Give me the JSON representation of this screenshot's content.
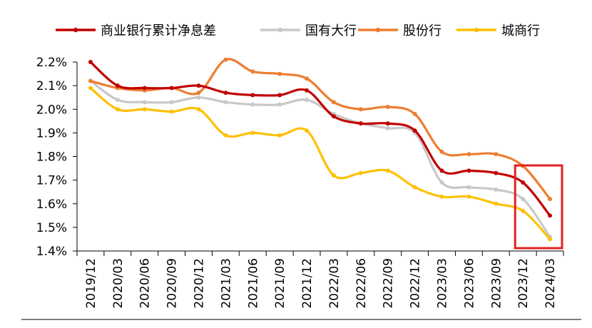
{
  "chart_data": {
    "type": "line",
    "title": "",
    "xlabel": "",
    "ylabel": "",
    "x": [
      "2019/12",
      "2020/03",
      "2020/06",
      "2020/09",
      "2020/12",
      "2021/03",
      "2021/06",
      "2021/09",
      "2021/12",
      "2022/03",
      "2022/06",
      "2022/09",
      "2022/12",
      "2023/03",
      "2023/06",
      "2023/09",
      "2023/12",
      "2024/03"
    ],
    "ylim": [
      1.4,
      2.2
    ],
    "yticks": [
      "1.4%",
      "1.5%",
      "1.6%",
      "1.7%",
      "1.8%",
      "1.9%",
      "2.0%",
      "2.1%",
      "2.2%"
    ],
    "grid": false,
    "legend_position": "top",
    "series": [
      {
        "name": "商业银行累计净息差",
        "color": "#c00000",
        "values": [
          2.2,
          2.1,
          2.09,
          2.09,
          2.1,
          2.07,
          2.06,
          2.06,
          2.08,
          1.97,
          1.94,
          1.94,
          1.91,
          1.74,
          1.74,
          1.73,
          1.69,
          1.55
        ]
      },
      {
        "name": "国有大行",
        "color": "#c8c8c8",
        "values": [
          2.12,
          2.04,
          2.03,
          2.03,
          2.05,
          2.03,
          2.02,
          2.02,
          2.04,
          1.98,
          1.94,
          1.92,
          1.9,
          1.69,
          1.67,
          1.66,
          1.62,
          1.46
        ]
      },
      {
        "name": "股份行",
        "color": "#ed7d31",
        "values": [
          2.12,
          2.09,
          2.08,
          2.09,
          2.07,
          2.21,
          2.16,
          2.15,
          2.13,
          2.03,
          2.0,
          2.01,
          1.98,
          1.82,
          1.81,
          1.81,
          1.76,
          1.62
        ]
      },
      {
        "name": "城商行",
        "color": "#ffc000",
        "values": [
          2.09,
          2.0,
          2.0,
          1.99,
          2.0,
          1.89,
          1.9,
          1.89,
          1.91,
          1.72,
          1.73,
          1.74,
          1.67,
          1.63,
          1.63,
          1.6,
          1.57,
          1.45
        ]
      }
    ],
    "annotations": [
      {
        "type": "highlight-box",
        "color": "#e32020",
        "covers": [
          "2023/12",
          "2024/03"
        ]
      }
    ]
  }
}
